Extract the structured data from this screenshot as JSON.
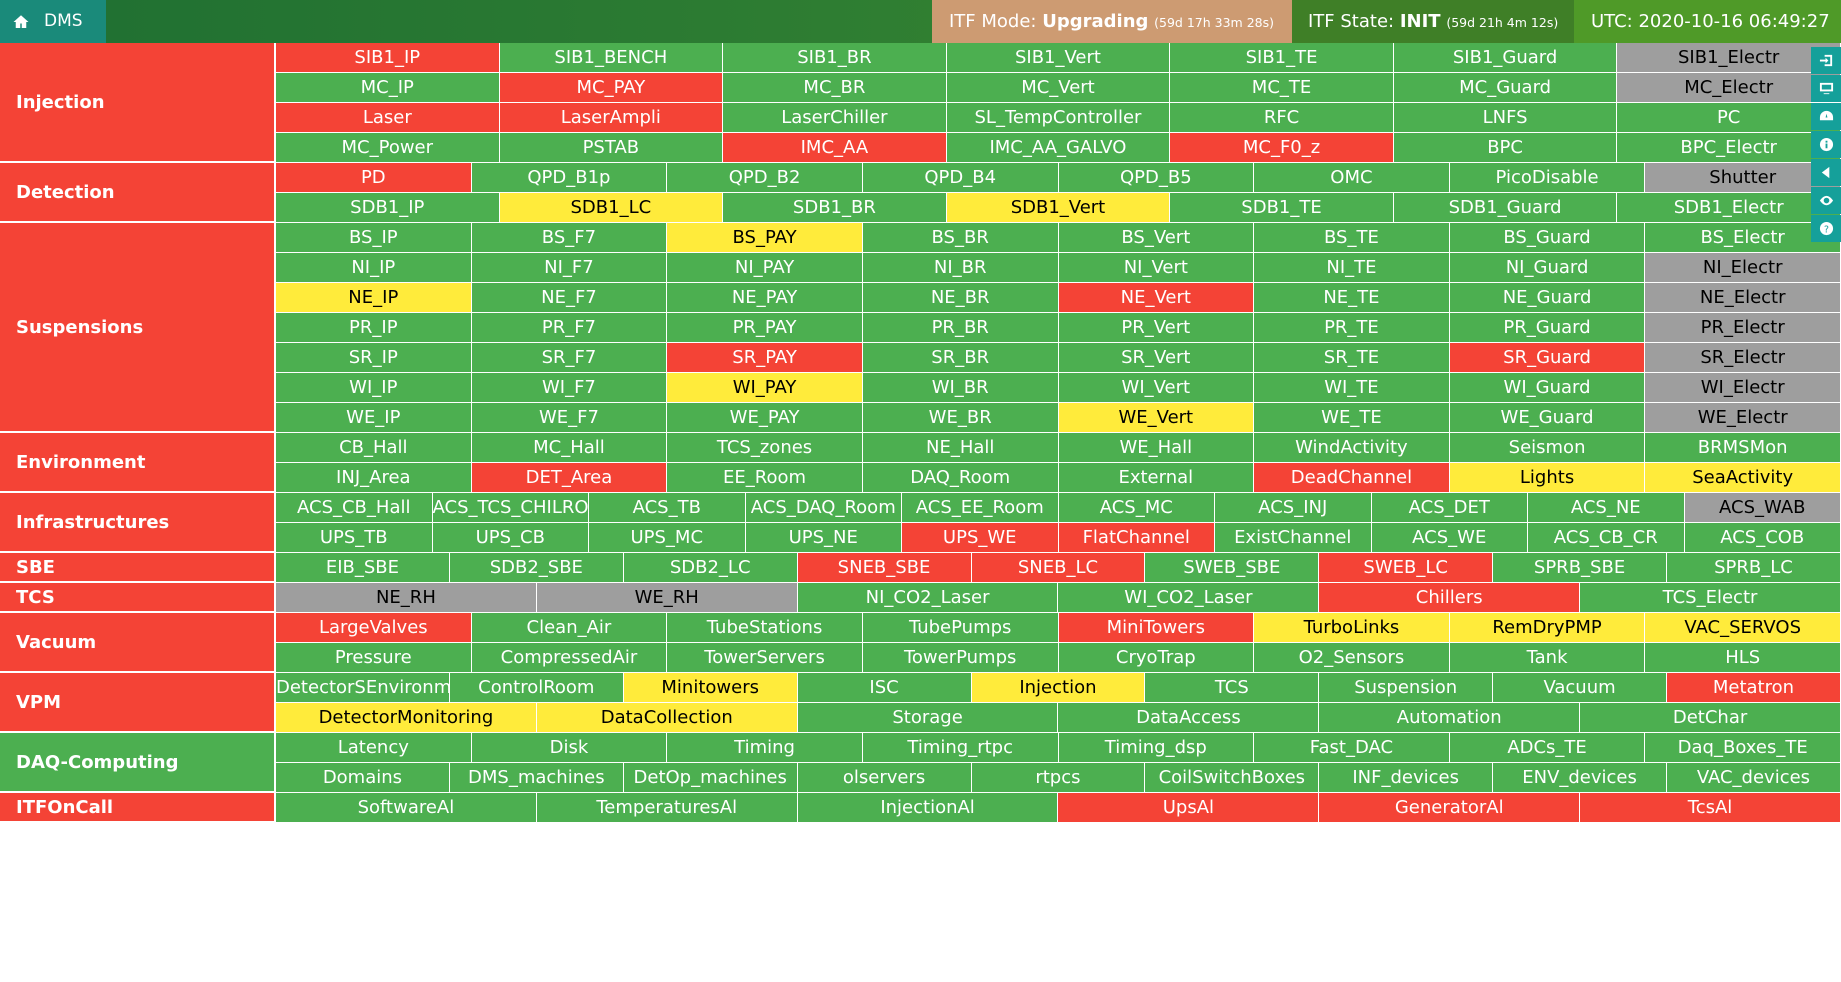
{
  "header": {
    "home_label": "DMS",
    "mode_label": "ITF Mode:",
    "mode_value": "Upgrading",
    "mode_duration": "(59d 17h 33m 28s)",
    "state_label": "ITF State:",
    "state_value": "INIT",
    "state_duration": "(59d 21h 4m 12s)",
    "utc": "UTC: 2020-10-16 06:49:27"
  },
  "colors": {
    "ok": "#4caf50",
    "error": "#f44336",
    "warning": "#ffeb3b",
    "unknown": "#9e9e9e",
    "accent": "#15a09a"
  },
  "sidebar_icons": [
    "login-icon",
    "monitor-icon",
    "dashboard-icon",
    "info-icon",
    "back-icon",
    "eye-icon",
    "help-icon"
  ],
  "groups": [
    {
      "name": "Injection",
      "status": "red",
      "rows": [
        [
          [
            "SIB1_IP",
            "red"
          ],
          [
            "SIB1_BENCH",
            "green"
          ],
          [
            "SIB1_BR",
            "green"
          ],
          [
            "SIB1_Vert",
            "green"
          ],
          [
            "SIB1_TE",
            "green"
          ],
          [
            "SIB1_Guard",
            "green"
          ],
          [
            "SIB1_Electr",
            "gray"
          ]
        ],
        [
          [
            "MC_IP",
            "green"
          ],
          [
            "MC_PAY",
            "red"
          ],
          [
            "MC_BR",
            "green"
          ],
          [
            "MC_Vert",
            "green"
          ],
          [
            "MC_TE",
            "green"
          ],
          [
            "MC_Guard",
            "green"
          ],
          [
            "MC_Electr",
            "gray"
          ]
        ],
        [
          [
            "Laser",
            "red"
          ],
          [
            "LaserAmpli",
            "red"
          ],
          [
            "LaserChiller",
            "green"
          ],
          [
            "SL_TempController",
            "green"
          ],
          [
            "RFC",
            "green"
          ],
          [
            "LNFS",
            "green"
          ],
          [
            "PC",
            "green"
          ]
        ],
        [
          [
            "MC_Power",
            "green"
          ],
          [
            "PSTAB",
            "green"
          ],
          [
            "IMC_AA",
            "red"
          ],
          [
            "IMC_AA_GALVO",
            "green"
          ],
          [
            "MC_F0_z",
            "red"
          ],
          [
            "BPC",
            "green"
          ],
          [
            "BPC_Electr",
            "green"
          ]
        ]
      ]
    },
    {
      "name": "Detection",
      "status": "red",
      "rows": [
        [
          [
            "PD",
            "red"
          ],
          [
            "QPD_B1p",
            "green"
          ],
          [
            "QPD_B2",
            "green"
          ],
          [
            "QPD_B4",
            "green"
          ],
          [
            "QPD_B5",
            "green"
          ],
          [
            "OMC",
            "green"
          ],
          [
            "PicoDisable",
            "green"
          ],
          [
            "Shutter",
            "gray"
          ]
        ],
        [
          [
            "SDB1_IP",
            "green"
          ],
          [
            "SDB1_LC",
            "yellow"
          ],
          [
            "SDB1_BR",
            "green"
          ],
          [
            "SDB1_Vert",
            "yellow"
          ],
          [
            "SDB1_TE",
            "green"
          ],
          [
            "SDB1_Guard",
            "green"
          ],
          [
            "SDB1_Electr",
            "green"
          ]
        ]
      ]
    },
    {
      "name": "Suspensions",
      "status": "red",
      "rows": [
        [
          [
            "BS_IP",
            "green"
          ],
          [
            "BS_F7",
            "green"
          ],
          [
            "BS_PAY",
            "yellow"
          ],
          [
            "BS_BR",
            "green"
          ],
          [
            "BS_Vert",
            "green"
          ],
          [
            "BS_TE",
            "green"
          ],
          [
            "BS_Guard",
            "green"
          ],
          [
            "BS_Electr",
            "green"
          ]
        ],
        [
          [
            "NI_IP",
            "green"
          ],
          [
            "NI_F7",
            "green"
          ],
          [
            "NI_PAY",
            "green"
          ],
          [
            "NI_BR",
            "green"
          ],
          [
            "NI_Vert",
            "green"
          ],
          [
            "NI_TE",
            "green"
          ],
          [
            "NI_Guard",
            "green"
          ],
          [
            "NI_Electr",
            "gray"
          ]
        ],
        [
          [
            "NE_IP",
            "yellow"
          ],
          [
            "NE_F7",
            "green"
          ],
          [
            "NE_PAY",
            "green"
          ],
          [
            "NE_BR",
            "green"
          ],
          [
            "NE_Vert",
            "red"
          ],
          [
            "NE_TE",
            "green"
          ],
          [
            "NE_Guard",
            "green"
          ],
          [
            "NE_Electr",
            "gray"
          ]
        ],
        [
          [
            "PR_IP",
            "green"
          ],
          [
            "PR_F7",
            "green"
          ],
          [
            "PR_PAY",
            "green"
          ],
          [
            "PR_BR",
            "green"
          ],
          [
            "PR_Vert",
            "green"
          ],
          [
            "PR_TE",
            "green"
          ],
          [
            "PR_Guard",
            "green"
          ],
          [
            "PR_Electr",
            "gray"
          ]
        ],
        [
          [
            "SR_IP",
            "green"
          ],
          [
            "SR_F7",
            "green"
          ],
          [
            "SR_PAY",
            "red"
          ],
          [
            "SR_BR",
            "green"
          ],
          [
            "SR_Vert",
            "green"
          ],
          [
            "SR_TE",
            "green"
          ],
          [
            "SR_Guard",
            "red"
          ],
          [
            "SR_Electr",
            "gray"
          ]
        ],
        [
          [
            "WI_IP",
            "green"
          ],
          [
            "WI_F7",
            "green"
          ],
          [
            "WI_PAY",
            "yellow"
          ],
          [
            "WI_BR",
            "green"
          ],
          [
            "WI_Vert",
            "green"
          ],
          [
            "WI_TE",
            "green"
          ],
          [
            "WI_Guard",
            "green"
          ],
          [
            "WI_Electr",
            "gray"
          ]
        ],
        [
          [
            "WE_IP",
            "green"
          ],
          [
            "WE_F7",
            "green"
          ],
          [
            "WE_PAY",
            "green"
          ],
          [
            "WE_BR",
            "green"
          ],
          [
            "WE_Vert",
            "yellow"
          ],
          [
            "WE_TE",
            "green"
          ],
          [
            "WE_Guard",
            "green"
          ],
          [
            "WE_Electr",
            "gray"
          ]
        ]
      ]
    },
    {
      "name": "Environment",
      "status": "red",
      "rows": [
        [
          [
            "CB_Hall",
            "green"
          ],
          [
            "MC_Hall",
            "green"
          ],
          [
            "TCS_zones",
            "green"
          ],
          [
            "NE_Hall",
            "green"
          ],
          [
            "WE_Hall",
            "green"
          ],
          [
            "WindActivity",
            "green"
          ],
          [
            "Seismon",
            "green"
          ],
          [
            "BRMSMon",
            "green"
          ]
        ],
        [
          [
            "INJ_Area",
            "green"
          ],
          [
            "DET_Area",
            "red"
          ],
          [
            "EE_Room",
            "green"
          ],
          [
            "DAQ_Room",
            "green"
          ],
          [
            "External",
            "green"
          ],
          [
            "DeadChannel",
            "red"
          ],
          [
            "Lights",
            "yellow"
          ],
          [
            "SeaActivity",
            "yellow"
          ]
        ]
      ]
    },
    {
      "name": "Infrastructures",
      "status": "red",
      "rows": [
        [
          [
            "ACS_CB_Hall",
            "green"
          ],
          [
            "ACS_TCS_CHILRO",
            "green"
          ],
          [
            "ACS_TB",
            "green"
          ],
          [
            "ACS_DAQ_Room",
            "green"
          ],
          [
            "ACS_EE_Room",
            "green"
          ],
          [
            "ACS_MC",
            "green"
          ],
          [
            "ACS_INJ",
            "green"
          ],
          [
            "ACS_DET",
            "green"
          ],
          [
            "ACS_NE",
            "green"
          ],
          [
            "ACS_WAB",
            "gray"
          ]
        ],
        [
          [
            "UPS_TB",
            "green"
          ],
          [
            "UPS_CB",
            "green"
          ],
          [
            "UPS_MC",
            "green"
          ],
          [
            "UPS_NE",
            "green"
          ],
          [
            "UPS_WE",
            "red"
          ],
          [
            "FlatChannel",
            "red"
          ],
          [
            "ExistChannel",
            "green"
          ],
          [
            "ACS_WE",
            "green"
          ],
          [
            "ACS_CB_CR",
            "green"
          ],
          [
            "ACS_COB",
            "green"
          ]
        ]
      ]
    },
    {
      "name": "SBE",
      "status": "red",
      "rows": [
        [
          [
            "EIB_SBE",
            "green"
          ],
          [
            "SDB2_SBE",
            "green"
          ],
          [
            "SDB2_LC",
            "green"
          ],
          [
            "SNEB_SBE",
            "red"
          ],
          [
            "SNEB_LC",
            "red"
          ],
          [
            "SWEB_SBE",
            "green"
          ],
          [
            "SWEB_LC",
            "red"
          ],
          [
            "SPRB_SBE",
            "green"
          ],
          [
            "SPRB_LC",
            "green"
          ]
        ]
      ]
    },
    {
      "name": "TCS",
      "status": "red",
      "rows": [
        [
          [
            "NE_RH",
            "gray"
          ],
          [
            "WE_RH",
            "gray"
          ],
          [
            "NI_CO2_Laser",
            "green"
          ],
          [
            "WI_CO2_Laser",
            "green"
          ],
          [
            "Chillers",
            "red"
          ],
          [
            "TCS_Electr",
            "green"
          ]
        ]
      ]
    },
    {
      "name": "Vacuum",
      "status": "red",
      "rows": [
        [
          [
            "LargeValves",
            "red"
          ],
          [
            "Clean_Air",
            "green"
          ],
          [
            "TubeStations",
            "green"
          ],
          [
            "TubePumps",
            "green"
          ],
          [
            "MiniTowers",
            "red"
          ],
          [
            "TurboLinks",
            "yellow"
          ],
          [
            "RemDryPMP",
            "yellow"
          ],
          [
            "VAC_SERVOS",
            "yellow"
          ]
        ],
        [
          [
            "Pressure",
            "green"
          ],
          [
            "CompressedAir",
            "green"
          ],
          [
            "TowerServers",
            "green"
          ],
          [
            "TowerPumps",
            "green"
          ],
          [
            "CryoTrap",
            "green"
          ],
          [
            "O2_Sensors",
            "green"
          ],
          [
            "Tank",
            "green"
          ],
          [
            "HLS",
            "green"
          ]
        ]
      ]
    },
    {
      "name": "VPM",
      "status": "red",
      "rows": [
        [
          [
            "DetectorSEnvironm",
            "green"
          ],
          [
            "ControlRoom",
            "green"
          ],
          [
            "Minitowers",
            "yellow"
          ],
          [
            "ISC",
            "green"
          ],
          [
            "Injection",
            "yellow"
          ],
          [
            "TCS",
            "green"
          ],
          [
            "Suspension",
            "green"
          ],
          [
            "Vacuum",
            "green"
          ],
          [
            "Metatron",
            "red"
          ]
        ],
        [
          [
            "DetectorMonitoring",
            "yellow"
          ],
          [
            "DataCollection",
            "yellow"
          ],
          [
            "Storage",
            "green"
          ],
          [
            "DataAccess",
            "green"
          ],
          [
            "Automation",
            "green"
          ],
          [
            "DetChar",
            "green"
          ]
        ]
      ]
    },
    {
      "name": "DAQ-Computing",
      "status": "green",
      "rows": [
        [
          [
            "Latency",
            "green"
          ],
          [
            "Disk",
            "green"
          ],
          [
            "Timing",
            "green"
          ],
          [
            "Timing_rtpc",
            "green"
          ],
          [
            "Timing_dsp",
            "green"
          ],
          [
            "Fast_DAC",
            "green"
          ],
          [
            "ADCs_TE",
            "green"
          ],
          [
            "Daq_Boxes_TE",
            "green"
          ]
        ],
        [
          [
            "Domains",
            "green"
          ],
          [
            "DMS_machines",
            "green"
          ],
          [
            "DetOp_machines",
            "green"
          ],
          [
            "olservers",
            "green"
          ],
          [
            "rtpcs",
            "green"
          ],
          [
            "CoilSwitchBoxes",
            "green"
          ],
          [
            "INF_devices",
            "green"
          ],
          [
            "ENV_devices",
            "green"
          ],
          [
            "VAC_devices",
            "green"
          ]
        ]
      ]
    },
    {
      "name": "ITFOnCall",
      "status": "red",
      "rows": [
        [
          [
            "SoftwareAl",
            "green"
          ],
          [
            "TemperaturesAl",
            "green"
          ],
          [
            "InjectionAl",
            "green"
          ],
          [
            "UpsAl",
            "red"
          ],
          [
            "GeneratorAl",
            "red"
          ],
          [
            "TcsAl",
            "red"
          ]
        ]
      ]
    }
  ]
}
